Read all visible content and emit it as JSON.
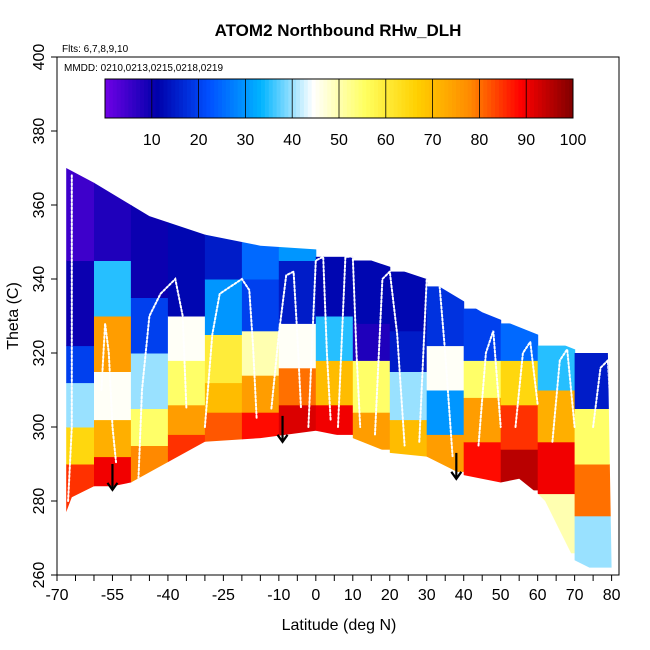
{
  "chart_data": {
    "type": "heatmap",
    "title": "ATOM2 Northbound RHw_DLH",
    "subtitle_flights": "Flts: 6,7,8,9,10",
    "subtitle_dates": "MMDD: 0210,0213,0215,0218,0219",
    "xlabel": "Latitude (deg N)",
    "ylabel": "Theta (C)",
    "xlim": [
      -70,
      82
    ],
    "ylim": [
      260,
      400
    ],
    "x_tick_labels": [
      "-70",
      "-55",
      "-40",
      "-25",
      "-10",
      "0",
      "10",
      "20",
      "30",
      "40",
      "50",
      "60",
      "70",
      "80"
    ],
    "y_tick_labels": [
      "260",
      "280",
      "300",
      "320",
      "340",
      "360",
      "380",
      "400"
    ],
    "colorbar": {
      "min": 0,
      "max": 100,
      "tick_labels": [
        "10",
        "20",
        "30",
        "40",
        "50",
        "60",
        "70",
        "80",
        "90",
        "100"
      ],
      "stops": [
        "#7000e6",
        "#0000aa",
        "#0050ff",
        "#00b4ff",
        "#ffffff",
        "#ffff60",
        "#ffd000",
        "#ff8c00",
        "#ff0000",
        "#800000"
      ]
    },
    "upper_boundary": [
      [
        -67.5,
        370
      ],
      [
        -60,
        366
      ],
      [
        -45,
        357
      ],
      [
        -30,
        352
      ],
      [
        -15,
        349
      ],
      [
        0,
        348
      ],
      [
        15,
        345
      ],
      [
        30,
        340
      ],
      [
        45,
        331
      ],
      [
        60,
        325
      ],
      [
        70,
        321
      ],
      [
        79,
        320
      ]
    ],
    "lower_boundary": [
      [
        -67.5,
        277
      ],
      [
        -66,
        281
      ],
      [
        -60,
        284
      ],
      [
        -55,
        284
      ],
      [
        -50,
        285
      ],
      [
        -30,
        296
      ],
      [
        -15,
        297
      ],
      [
        0,
        299
      ],
      [
        10,
        297
      ],
      [
        20,
        293
      ],
      [
        30,
        292
      ],
      [
        40,
        287
      ],
      [
        50,
        285
      ],
      [
        55,
        286
      ],
      [
        60,
        282
      ],
      [
        62,
        280
      ],
      [
        66,
        272
      ],
      [
        70,
        264
      ],
      [
        74,
        262
      ],
      [
        80,
        262
      ]
    ],
    "rh_bands": [
      {
        "lat": [
          -68,
          -60
        ],
        "segments": [
          [
            270,
            290,
            85
          ],
          [
            290,
            300,
            65
          ],
          [
            300,
            312,
            40
          ],
          [
            312,
            322,
            20
          ],
          [
            322,
            345,
            10
          ],
          [
            345,
            372,
            5
          ]
        ]
      },
      {
        "lat": [
          -60,
          -50
        ],
        "segments": [
          [
            280,
            292,
            90
          ],
          [
            292,
            302,
            72
          ],
          [
            302,
            315,
            45
          ],
          [
            315,
            330,
            75
          ],
          [
            330,
            345,
            35
          ],
          [
            345,
            368,
            8
          ]
        ]
      },
      {
        "lat": [
          -50,
          -40
        ],
        "segments": [
          [
            284,
            295,
            78
          ],
          [
            295,
            305,
            55
          ],
          [
            305,
            320,
            40
          ],
          [
            320,
            335,
            20
          ],
          [
            335,
            360,
            10
          ]
        ]
      },
      {
        "lat": [
          -40,
          -30
        ],
        "segments": [
          [
            288,
            298,
            85
          ],
          [
            298,
            306,
            75
          ],
          [
            306,
            318,
            55
          ],
          [
            318,
            330,
            45
          ],
          [
            330,
            356,
            12
          ]
        ]
      },
      {
        "lat": [
          -30,
          -20
        ],
        "segments": [
          [
            295,
            304,
            82
          ],
          [
            304,
            312,
            70
          ],
          [
            312,
            325,
            60
          ],
          [
            325,
            340,
            30
          ],
          [
            340,
            353,
            15
          ]
        ]
      },
      {
        "lat": [
          -20,
          -10
        ],
        "segments": [
          [
            296,
            304,
            88
          ],
          [
            304,
            314,
            75
          ],
          [
            314,
            326,
            50
          ],
          [
            326,
            340,
            20
          ],
          [
            340,
            350,
            25
          ]
        ]
      },
      {
        "lat": [
          -10,
          0
        ],
        "segments": [
          [
            297,
            306,
            92
          ],
          [
            306,
            316,
            80
          ],
          [
            316,
            328,
            45
          ],
          [
            328,
            345,
            15
          ],
          [
            345,
            349,
            30
          ]
        ]
      },
      {
        "lat": [
          0,
          10
        ],
        "segments": [
          [
            298,
            306,
            90
          ],
          [
            306,
            318,
            70
          ],
          [
            318,
            330,
            35
          ],
          [
            330,
            346,
            12
          ]
        ]
      },
      {
        "lat": [
          10,
          20
        ],
        "segments": [
          [
            294,
            304,
            75
          ],
          [
            304,
            318,
            55
          ],
          [
            318,
            328,
            8
          ],
          [
            328,
            345,
            12
          ]
        ]
      },
      {
        "lat": [
          20,
          30
        ],
        "segments": [
          [
            292,
            302,
            70
          ],
          [
            302,
            315,
            40
          ],
          [
            315,
            326,
            15
          ],
          [
            326,
            342,
            12
          ]
        ]
      },
      {
        "lat": [
          30,
          40
        ],
        "segments": [
          [
            288,
            298,
            75
          ],
          [
            298,
            310,
            30
          ],
          [
            310,
            322,
            45
          ],
          [
            322,
            338,
            18
          ]
        ]
      },
      {
        "lat": [
          40,
          50
        ],
        "segments": [
          [
            285,
            296,
            88
          ],
          [
            296,
            308,
            75
          ],
          [
            308,
            318,
            55
          ],
          [
            318,
            332,
            20
          ]
        ]
      },
      {
        "lat": [
          50,
          60
        ],
        "segments": [
          [
            283,
            294,
            95
          ],
          [
            294,
            306,
            85
          ],
          [
            306,
            318,
            65
          ],
          [
            318,
            328,
            25
          ]
        ]
      },
      {
        "lat": [
          60,
          70
        ],
        "segments": [
          [
            266,
            282,
            50
          ],
          [
            282,
            296,
            90
          ],
          [
            296,
            310,
            72
          ],
          [
            310,
            322,
            35
          ]
        ]
      },
      {
        "lat": [
          70,
          80
        ],
        "segments": [
          [
            262,
            276,
            40
          ],
          [
            276,
            290,
            80
          ],
          [
            290,
            305,
            55
          ],
          [
            305,
            320,
            15
          ]
        ]
      }
    ],
    "flight_tracks": [
      [
        [
          -67,
          280
        ],
        [
          -66,
          300
        ],
        [
          -66,
          330
        ],
        [
          -66,
          355
        ],
        [
          -66,
          368
        ]
      ],
      [
        [
          -58,
          310
        ],
        [
          -57,
          328
        ],
        [
          -56,
          320
        ],
        [
          -55,
          300
        ],
        [
          -54,
          290
        ]
      ],
      [
        [
          -48,
          285
        ],
        [
          -47,
          310
        ],
        [
          -45,
          330
        ],
        [
          -42,
          336
        ],
        [
          -38,
          340
        ],
        [
          -36,
          330
        ],
        [
          -35,
          305
        ]
      ],
      [
        [
          -30,
          300
        ],
        [
          -28,
          325
        ],
        [
          -26,
          336
        ],
        [
          -20,
          340
        ],
        [
          -18,
          337
        ],
        [
          -17,
          322
        ],
        [
          -16,
          302
        ]
      ],
      [
        [
          -12,
          305
        ],
        [
          -10,
          325
        ],
        [
          -8,
          341
        ],
        [
          -6,
          342
        ],
        [
          -5,
          325
        ],
        [
          -4,
          305
        ]
      ],
      [
        [
          -2,
          300
        ],
        [
          0,
          345
        ],
        [
          2,
          346
        ],
        [
          3,
          320
        ],
        [
          4,
          302
        ]
      ],
      [
        [
          6,
          300
        ],
        [
          8,
          346
        ],
        [
          10,
          346
        ],
        [
          11,
          320
        ],
        [
          12,
          300
        ]
      ],
      [
        [
          16,
          298
        ],
        [
          18,
          340
        ],
        [
          20,
          342
        ],
        [
          22,
          325
        ],
        [
          24,
          295
        ]
      ],
      [
        [
          28,
          296
        ],
        [
          30,
          340
        ],
        [
          33,
          344
        ],
        [
          35,
          320
        ],
        [
          37,
          292
        ]
      ],
      [
        [
          44,
          295
        ],
        [
          46,
          320
        ],
        [
          48,
          326
        ],
        [
          50,
          300
        ]
      ],
      [
        [
          54,
          300
        ],
        [
          56,
          320
        ],
        [
          58,
          323
        ],
        [
          60,
          306
        ]
      ],
      [
        [
          64,
          296
        ],
        [
          66,
          318
        ],
        [
          68,
          321
        ],
        [
          70,
          300
        ]
      ],
      [
        [
          75,
          300
        ],
        [
          77,
          316
        ],
        [
          79,
          318
        ],
        [
          80,
          300
        ]
      ]
    ],
    "arrows": [
      {
        "lat": -55,
        "theta_top": 290,
        "theta_bottom": 283
      },
      {
        "lat": -9,
        "theta_top": 303,
        "theta_bottom": 296
      },
      {
        "lat": 38,
        "theta_top": 293,
        "theta_bottom": 286
      }
    ],
    "legend": "colorbar-top"
  }
}
